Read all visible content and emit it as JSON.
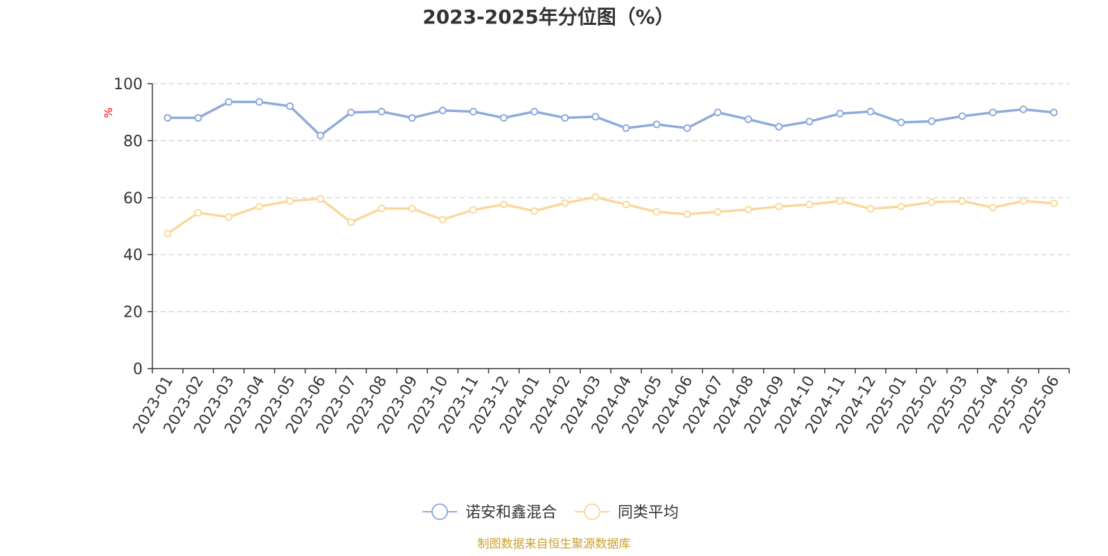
{
  "chart_data": {
    "type": "line",
    "title": "2023-2025年分位图（%）",
    "ylabel": "%",
    "xlabel": "",
    "ylim": [
      0,
      100
    ],
    "yticks": [
      0,
      20,
      40,
      60,
      80,
      100
    ],
    "grid": true,
    "legend_position": "bottom-center",
    "categories": [
      "2023-01",
      "2023-02",
      "2023-03",
      "2023-04",
      "2023-05",
      "2023-06",
      "2023-07",
      "2023-08",
      "2023-09",
      "2023-10",
      "2023-11",
      "2023-12",
      "2024-01",
      "2024-02",
      "2024-03",
      "2024-04",
      "2024-05",
      "2024-06",
      "2024-07",
      "2024-08",
      "2024-09",
      "2024-10",
      "2024-11",
      "2024-12",
      "2025-01",
      "2025-02",
      "2025-03",
      "2025-04",
      "2025-05",
      "2025-06"
    ],
    "series": [
      {
        "name": "诺安和鑫混合",
        "color": "#8eaadb",
        "values": [
          88.0,
          88.0,
          93.6,
          93.6,
          92.1,
          81.8,
          89.9,
          90.2,
          88.0,
          90.6,
          90.2,
          88.0,
          90.2,
          88.0,
          88.4,
          84.4,
          85.7,
          84.4,
          89.9,
          87.5,
          84.9,
          86.7,
          89.5,
          90.2,
          86.4,
          86.8,
          88.6,
          89.9,
          91.0,
          89.9
        ]
      },
      {
        "name": "同类平均",
        "color": "#fad89b",
        "values": [
          47.4,
          54.7,
          53.2,
          56.9,
          58.8,
          59.6,
          51.4,
          56.2,
          56.2,
          52.3,
          55.7,
          57.6,
          55.3,
          58.1,
          60.2,
          57.6,
          55.0,
          54.2,
          55.0,
          55.8,
          56.9,
          57.6,
          58.8,
          56.1,
          56.9,
          58.4,
          58.8,
          56.5,
          58.8,
          58.0
        ]
      }
    ]
  },
  "colors": {
    "title": "#333333",
    "axis": "#333333",
    "grid": "#cccccc",
    "unit_label": "#ff0000",
    "source": "#c9a030"
  },
  "source_text": "制图数据来自恒生聚源数据库"
}
